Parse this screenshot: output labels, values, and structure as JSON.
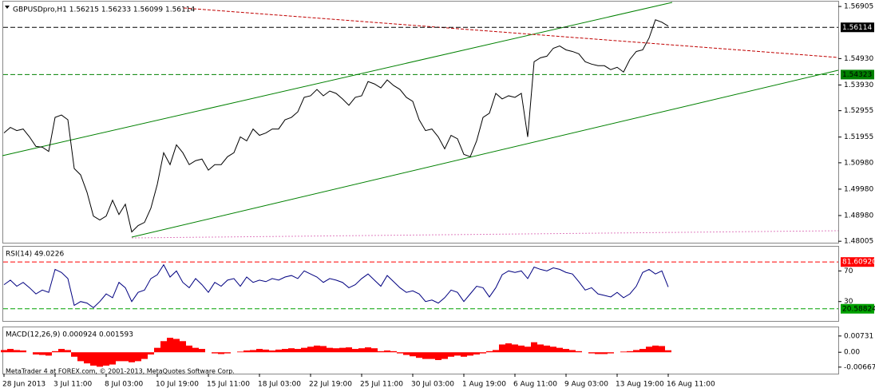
{
  "chart_data": [
    {
      "type": "line",
      "title": "GBPUSDpro,H1 1.56215 1.56233 1.56099 1.56114",
      "color": "#000000",
      "ylim": [
        1.4795,
        1.5706
      ],
      "yticks": [
        1.56905,
        {
          "value": 1.5493,
          "label": "1.54930"
        },
        {
          "value": 1.5393,
          "label": "1.53930"
        },
        1.52955,
        1.51955,
        {
          "value": 1.5098,
          "label": "1.50980"
        },
        {
          "value": 1.4998,
          "label": "1.49980"
        },
        {
          "value": 1.4898,
          "label": "1.48980"
        },
        1.48005
      ],
      "levels": [
        {
          "value": 1.56114,
          "color": "#000000",
          "text_color": "#ffffff"
        },
        {
          "value": 1.54323,
          "color": "#008000",
          "text_color": "#000000"
        }
      ],
      "values": [
        1.5211,
        1.5232,
        1.522,
        1.5226,
        1.5196,
        1.516,
        1.5157,
        1.5141,
        1.527,
        1.5279,
        1.5261,
        1.5076,
        1.5052,
        1.4986,
        1.4896,
        1.4881,
        1.4896,
        1.4956,
        1.4902,
        1.4941,
        1.4836,
        1.486,
        1.4872,
        1.4926,
        1.5016,
        1.5136,
        1.5091,
        1.5166,
        1.5136,
        1.5091,
        1.5106,
        1.5112,
        1.507,
        1.5091,
        1.5091,
        1.5121,
        1.5136,
        1.5196,
        1.5181,
        1.5226,
        1.5202,
        1.5211,
        1.5226,
        1.5226,
        1.5261,
        1.527,
        1.5291,
        1.5346,
        1.5352,
        1.5376,
        1.5352,
        1.537,
        1.5361,
        1.534,
        1.5316,
        1.5346,
        1.5352,
        1.5406,
        1.5397,
        1.5382,
        1.5412,
        1.5391,
        1.5376,
        1.5346,
        1.5331,
        1.5261,
        1.522,
        1.5226,
        1.5196,
        1.5151,
        1.5202,
        1.5189,
        1.513,
        1.5121,
        1.5181,
        1.527,
        1.5286,
        1.5361,
        1.534,
        1.5352,
        1.5346,
        1.5361,
        1.5196,
        1.5481,
        1.5496,
        1.5502,
        1.5532,
        1.5541,
        1.5526,
        1.552,
        1.5511,
        1.5481,
        1.5472,
        1.5466,
        1.5466,
        1.5451,
        1.546,
        1.5442,
        1.549,
        1.552,
        1.5526,
        1.5571,
        1.564,
        1.5631,
        1.5616
      ]
    },
    {
      "type": "line",
      "title": "RSI(14) 49.0226",
      "color": "#000080",
      "ylim": [
        4.7,
        101.6
      ],
      "yticks": [
        70,
        30
      ],
      "levels": [
        {
          "value": 81.6092,
          "label": "81.60920",
          "color": "#ff0000",
          "text_color": "#ffffff"
        },
        {
          "value": 20.58824,
          "color": "#00a000",
          "text_color": "#000000"
        }
      ],
      "values": [
        52,
        58,
        50,
        55,
        48,
        40,
        45,
        42,
        72,
        68,
        60,
        25,
        30,
        28,
        22,
        30,
        40,
        35,
        55,
        48,
        30,
        42,
        45,
        60,
        65,
        78,
        62,
        70,
        55,
        48,
        60,
        52,
        42,
        55,
        50,
        58,
        60,
        50,
        62,
        55,
        58,
        56,
        60,
        58,
        62,
        64,
        60,
        70,
        66,
        62,
        55,
        60,
        58,
        55,
        48,
        52,
        60,
        66,
        58,
        50,
        64,
        56,
        48,
        42,
        44,
        40,
        30,
        32,
        28,
        35,
        45,
        42,
        30,
        40,
        50,
        48,
        36,
        48,
        65,
        70,
        68,
        70,
        60,
        75,
        72,
        70,
        74,
        72,
        68,
        66,
        56,
        45,
        48,
        40,
        38,
        36,
        42,
        35,
        40,
        50,
        68,
        72,
        66,
        70,
        49
      ]
    },
    {
      "type": "bar",
      "title": "MACD(12,26,9) 0.000924 0.001593",
      "color": "#ff0000",
      "ylim": [
        -0.0096,
        0.0112
      ],
      "yticks": [
        0.00731,
        {
          "value": 0,
          "label": "0.00"
        },
        -0.006671
      ],
      "values": [
        0.001,
        0.0015,
        0.001,
        0.0008,
        0,
        -0.001,
        -0.0012,
        -0.0015,
        0.0005,
        0.0015,
        0.001,
        -0.002,
        -0.004,
        -0.005,
        -0.006,
        -0.0065,
        -0.006,
        -0.0055,
        -0.004,
        -0.004,
        -0.0045,
        -0.004,
        -0.003,
        -0.001,
        0.002,
        0.005,
        0.0065,
        0.006,
        0.005,
        0.003,
        0.002,
        0.0015,
        0,
        -0.0005,
        -0.0008,
        -0.0005,
        0,
        0.0003,
        0.0008,
        0.001,
        0.0015,
        0.0012,
        0.0008,
        0.0012,
        0.0015,
        0.0018,
        0.0015,
        0.002,
        0.0025,
        0.003,
        0.0028,
        0.002,
        0.0018,
        0.002,
        0.0022,
        0.0015,
        0.0018,
        0.0022,
        0.0018,
        0.0005,
        0.0008,
        0.0005,
        -0.0005,
        -0.0012,
        -0.0018,
        -0.0025,
        -0.003,
        -0.003,
        -0.0035,
        -0.003,
        -0.002,
        -0.0015,
        -0.002,
        -0.0015,
        -0.001,
        -0.0005,
        0.0005,
        0.001,
        0.0035,
        0.004,
        0.0035,
        0.003,
        0.0025,
        0.0045,
        0.0035,
        0.003,
        0.0025,
        0.002,
        0.0015,
        0.001,
        0.0005,
        0,
        -0.0005,
        -0.0008,
        -0.0008,
        -0.0005,
        0,
        0.0003,
        0.0005,
        0.001,
        0.0015,
        0.0025,
        0.003,
        0.0028,
        0.0009
      ],
      "categories": [
        "28 Jun 2013",
        null,
        null,
        null,
        null,
        null,
        null,
        null,
        "3 Jul 11:00",
        null,
        null,
        null,
        null,
        null,
        null,
        null,
        "8 Jul 03:00",
        null,
        null,
        null,
        null,
        null,
        null,
        null,
        "10 Jul 19:00",
        null,
        null,
        null,
        null,
        null,
        null,
        null,
        "15 Jul 11:00",
        null,
        null,
        null,
        null,
        null,
        null,
        null,
        "18 Jul 03:00",
        null,
        null,
        null,
        null,
        null,
        null,
        null,
        "22 Jul 19:00",
        null,
        null,
        null,
        null,
        null,
        null,
        null,
        "25 Jul 11:00",
        null,
        null,
        null,
        null,
        null,
        null,
        null,
        "30 Jul 03:00",
        null,
        null,
        null,
        null,
        null,
        null,
        null,
        "1 Aug 19:00",
        null,
        null,
        null,
        null,
        null,
        null,
        null,
        "6 Aug 11:00",
        null,
        null,
        null,
        null,
        null,
        null,
        null,
        "9 Aug 03:00",
        null,
        null,
        null,
        null,
        null,
        null,
        null,
        "13 Aug 19:00",
        null,
        null,
        null,
        null,
        null,
        null,
        null,
        "16 Aug 11:00"
      ]
    }
  ],
  "footer": "MetaTrader 4 at FOREX.com, © 2001-2013, MetaQuotes Software Corp."
}
